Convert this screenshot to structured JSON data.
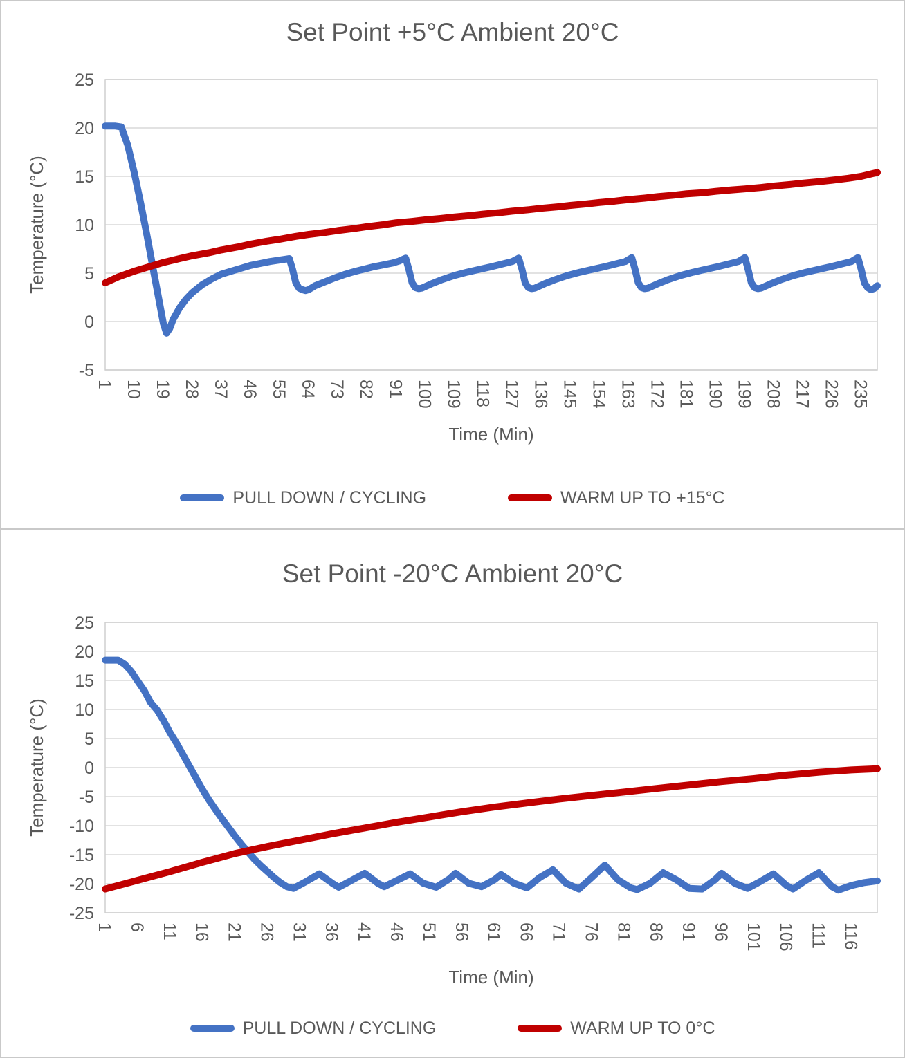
{
  "colors": {
    "text": "#595959",
    "grid": "#d9d9d9",
    "plot_border": "#cfcfcf",
    "panel_border": "#c9c9c9",
    "series_blue": "#4472C4",
    "series_red": "#C00000"
  },
  "chart_data": [
    {
      "type": "line",
      "title": "Set Point +5°C Ambient 20°C",
      "xlabel": "Time (Min)",
      "ylabel": "Temperature (°C)",
      "xlim": [
        1,
        240
      ],
      "ylim": [
        -5,
        25
      ],
      "ytick_step": 5,
      "grid": true,
      "legend_position": "bottom",
      "xticks": [
        1,
        10,
        19,
        28,
        37,
        46,
        55,
        64,
        73,
        82,
        91,
        100,
        109,
        118,
        127,
        136,
        145,
        154,
        163,
        172,
        181,
        190,
        199,
        208,
        217,
        226,
        235
      ],
      "series": [
        {
          "name": "PULL DOWN / CYCLING",
          "color": "#4472C4",
          "points": [
            [
              1,
              20.2
            ],
            [
              4,
              20.2
            ],
            [
              6,
              20.1
            ],
            [
              8,
              18.2
            ],
            [
              10,
              15.4
            ],
            [
              12,
              12.2
            ],
            [
              14,
              8.8
            ],
            [
              16,
              5.2
            ],
            [
              18,
              1.6
            ],
            [
              19,
              -0.2
            ],
            [
              20,
              -1.2
            ],
            [
              21,
              -0.7
            ],
            [
              22,
              0.2
            ],
            [
              24,
              1.4
            ],
            [
              26,
              2.3
            ],
            [
              28,
              3.0
            ],
            [
              31,
              3.8
            ],
            [
              34,
              4.4
            ],
            [
              37,
              4.9
            ],
            [
              40,
              5.2
            ],
            [
              43,
              5.5
            ],
            [
              46,
              5.8
            ],
            [
              49,
              6.0
            ],
            [
              52,
              6.2
            ],
            [
              55,
              6.35
            ],
            [
              57,
              6.45
            ],
            [
              58,
              6.5
            ],
            [
              59,
              5.4
            ],
            [
              60,
              4.0
            ],
            [
              61,
              3.45
            ],
            [
              62,
              3.3
            ],
            [
              63,
              3.2
            ],
            [
              64,
              3.3
            ],
            [
              66,
              3.7
            ],
            [
              69,
              4.1
            ],
            [
              72,
              4.5
            ],
            [
              75,
              4.85
            ],
            [
              78,
              5.15
            ],
            [
              81,
              5.4
            ],
            [
              84,
              5.65
            ],
            [
              87,
              5.85
            ],
            [
              90,
              6.05
            ],
            [
              92,
              6.25
            ],
            [
              94,
              6.55
            ],
            [
              95,
              5.4
            ],
            [
              96,
              4.0
            ],
            [
              97,
              3.5
            ],
            [
              98,
              3.4
            ],
            [
              99,
              3.45
            ],
            [
              102,
              3.9
            ],
            [
              105,
              4.3
            ],
            [
              109,
              4.75
            ],
            [
              113,
              5.1
            ],
            [
              117,
              5.4
            ],
            [
              121,
              5.7
            ],
            [
              124,
              5.95
            ],
            [
              127,
              6.2
            ],
            [
              129,
              6.55
            ],
            [
              130,
              5.4
            ],
            [
              131,
              4.0
            ],
            [
              132,
              3.5
            ],
            [
              133,
              3.4
            ],
            [
              134,
              3.45
            ],
            [
              137,
              3.9
            ],
            [
              140,
              4.3
            ],
            [
              144,
              4.75
            ],
            [
              148,
              5.1
            ],
            [
              152,
              5.4
            ],
            [
              156,
              5.7
            ],
            [
              159,
              5.95
            ],
            [
              162,
              6.2
            ],
            [
              164,
              6.6
            ],
            [
              165,
              5.4
            ],
            [
              166,
              4.0
            ],
            [
              167,
              3.5
            ],
            [
              168,
              3.4
            ],
            [
              169,
              3.45
            ],
            [
              172,
              3.9
            ],
            [
              175,
              4.3
            ],
            [
              179,
              4.75
            ],
            [
              183,
              5.1
            ],
            [
              187,
              5.4
            ],
            [
              191,
              5.7
            ],
            [
              194,
              5.95
            ],
            [
              197,
              6.2
            ],
            [
              199,
              6.6
            ],
            [
              200,
              5.4
            ],
            [
              201,
              4.0
            ],
            [
              202,
              3.5
            ],
            [
              203,
              3.4
            ],
            [
              204,
              3.45
            ],
            [
              207,
              3.9
            ],
            [
              210,
              4.3
            ],
            [
              214,
              4.75
            ],
            [
              218,
              5.1
            ],
            [
              222,
              5.4
            ],
            [
              226,
              5.7
            ],
            [
              229,
              5.95
            ],
            [
              232,
              6.2
            ],
            [
              234,
              6.6
            ],
            [
              235,
              5.4
            ],
            [
              236,
              4.0
            ],
            [
              237,
              3.5
            ],
            [
              238,
              3.3
            ],
            [
              239,
              3.4
            ],
            [
              240,
              3.7
            ]
          ]
        },
        {
          "name": "WARM UP TO +15°C",
          "color": "#C00000",
          "points": [
            [
              1,
              4.0
            ],
            [
              5,
              4.6
            ],
            [
              10,
              5.2
            ],
            [
              15,
              5.7
            ],
            [
              19,
              6.1
            ],
            [
              24,
              6.5
            ],
            [
              28,
              6.8
            ],
            [
              33,
              7.1
            ],
            [
              37,
              7.4
            ],
            [
              42,
              7.7
            ],
            [
              46,
              8.0
            ],
            [
              51,
              8.3
            ],
            [
              55,
              8.5
            ],
            [
              60,
              8.8
            ],
            [
              64,
              9.0
            ],
            [
              69,
              9.2
            ],
            [
              73,
              9.4
            ],
            [
              78,
              9.6
            ],
            [
              82,
              9.8
            ],
            [
              87,
              10.0
            ],
            [
              91,
              10.2
            ],
            [
              96,
              10.35
            ],
            [
              100,
              10.5
            ],
            [
              105,
              10.65
            ],
            [
              109,
              10.8
            ],
            [
              114,
              10.95
            ],
            [
              118,
              11.1
            ],
            [
              123,
              11.25
            ],
            [
              127,
              11.4
            ],
            [
              132,
              11.55
            ],
            [
              136,
              11.7
            ],
            [
              141,
              11.85
            ],
            [
              145,
              12.0
            ],
            [
              150,
              12.15
            ],
            [
              154,
              12.3
            ],
            [
              159,
              12.45
            ],
            [
              163,
              12.6
            ],
            [
              168,
              12.75
            ],
            [
              172,
              12.9
            ],
            [
              177,
              13.05
            ],
            [
              181,
              13.2
            ],
            [
              186,
              13.3
            ],
            [
              190,
              13.45
            ],
            [
              195,
              13.6
            ],
            [
              199,
              13.7
            ],
            [
              204,
              13.85
            ],
            [
              208,
              14.0
            ],
            [
              213,
              14.15
            ],
            [
              217,
              14.3
            ],
            [
              222,
              14.45
            ],
            [
              226,
              14.6
            ],
            [
              231,
              14.8
            ],
            [
              235,
              15.0
            ],
            [
              240,
              15.4
            ]
          ]
        }
      ]
    },
    {
      "type": "line",
      "title": "Set Point -20°C Ambient 20°C",
      "xlabel": "Time (Min)",
      "ylabel": "Temperature (°C)",
      "xlim": [
        1,
        120
      ],
      "ylim": [
        -25,
        25
      ],
      "ytick_step": 5,
      "grid": true,
      "legend_position": "bottom",
      "xticks": [
        1,
        6,
        11,
        16,
        21,
        26,
        31,
        36,
        41,
        46,
        51,
        56,
        61,
        66,
        71,
        76,
        81,
        86,
        91,
        96,
        101,
        106,
        111,
        116
      ],
      "series": [
        {
          "name": "PULL DOWN / CYCLING",
          "color": "#4472C4",
          "points": [
            [
              1,
              18.5
            ],
            [
              2,
              18.5
            ],
            [
              3,
              18.5
            ],
            [
              4,
              17.8
            ],
            [
              5,
              16.6
            ],
            [
              6,
              14.9
            ],
            [
              7,
              13.3
            ],
            [
              8,
              11.2
            ],
            [
              9,
              9.9
            ],
            [
              10,
              8.1
            ],
            [
              11,
              6.0
            ],
            [
              12,
              4.2
            ],
            [
              13,
              2.2
            ],
            [
              14,
              0.2
            ],
            [
              15,
              -1.8
            ],
            [
              16,
              -3.8
            ],
            [
              17,
              -5.6
            ],
            [
              18,
              -7.2
            ],
            [
              19,
              -8.8
            ],
            [
              20,
              -10.3
            ],
            [
              21,
              -11.8
            ],
            [
              22,
              -13.2
            ],
            [
              23,
              -14.5
            ],
            [
              24,
              -15.8
            ],
            [
              25,
              -16.9
            ],
            [
              26,
              -17.9
            ],
            [
              27,
              -18.9
            ],
            [
              28,
              -19.8
            ],
            [
              29,
              -20.5
            ],
            [
              30,
              -20.8
            ],
            [
              32,
              -19.6
            ],
            [
              34,
              -18.3
            ],
            [
              36,
              -19.9
            ],
            [
              37,
              -20.6
            ],
            [
              39,
              -19.4
            ],
            [
              41,
              -18.2
            ],
            [
              43,
              -19.9
            ],
            [
              44,
              -20.5
            ],
            [
              46,
              -19.4
            ],
            [
              48,
              -18.3
            ],
            [
              50,
              -19.9
            ],
            [
              52,
              -20.6
            ],
            [
              54,
              -19.2
            ],
            [
              55,
              -18.2
            ],
            [
              57,
              -19.9
            ],
            [
              59,
              -20.5
            ],
            [
              61,
              -19.3
            ],
            [
              62,
              -18.4
            ],
            [
              64,
              -19.9
            ],
            [
              66,
              -20.7
            ],
            [
              68,
              -18.9
            ],
            [
              70,
              -17.6
            ],
            [
              72,
              -19.9
            ],
            [
              74,
              -20.9
            ],
            [
              76,
              -18.9
            ],
            [
              78,
              -16.8
            ],
            [
              80,
              -19.3
            ],
            [
              82,
              -20.7
            ],
            [
              83,
              -21.0
            ],
            [
              85,
              -19.9
            ],
            [
              87,
              -18.1
            ],
            [
              89,
              -19.3
            ],
            [
              91,
              -20.8
            ],
            [
              93,
              -20.9
            ],
            [
              95,
              -19.3
            ],
            [
              96,
              -18.2
            ],
            [
              98,
              -19.9
            ],
            [
              100,
              -20.8
            ],
            [
              102,
              -19.6
            ],
            [
              104,
              -18.3
            ],
            [
              106,
              -20.3
            ],
            [
              107,
              -20.9
            ],
            [
              109,
              -19.4
            ],
            [
              111,
              -18.1
            ],
            [
              113,
              -20.5
            ],
            [
              114,
              -21.1
            ],
            [
              116,
              -20.3
            ],
            [
              118,
              -19.8
            ],
            [
              120,
              -19.5
            ]
          ]
        },
        {
          "name": "WARM UP TO 0°C",
          "color": "#C00000",
          "points": [
            [
              1,
              -20.9
            ],
            [
              6,
              -19.4
            ],
            [
              11,
              -17.9
            ],
            [
              16,
              -16.3
            ],
            [
              21,
              -14.8
            ],
            [
              26,
              -13.6
            ],
            [
              31,
              -12.5
            ],
            [
              36,
              -11.4
            ],
            [
              41,
              -10.4
            ],
            [
              46,
              -9.4
            ],
            [
              51,
              -8.5
            ],
            [
              56,
              -7.6
            ],
            [
              61,
              -6.8
            ],
            [
              66,
              -6.1
            ],
            [
              71,
              -5.4
            ],
            [
              76,
              -4.8
            ],
            [
              81,
              -4.2
            ],
            [
              86,
              -3.6
            ],
            [
              91,
              -3.0
            ],
            [
              96,
              -2.4
            ],
            [
              101,
              -1.9
            ],
            [
              106,
              -1.3
            ],
            [
              111,
              -0.8
            ],
            [
              116,
              -0.4
            ],
            [
              120,
              -0.2
            ]
          ]
        }
      ]
    }
  ]
}
